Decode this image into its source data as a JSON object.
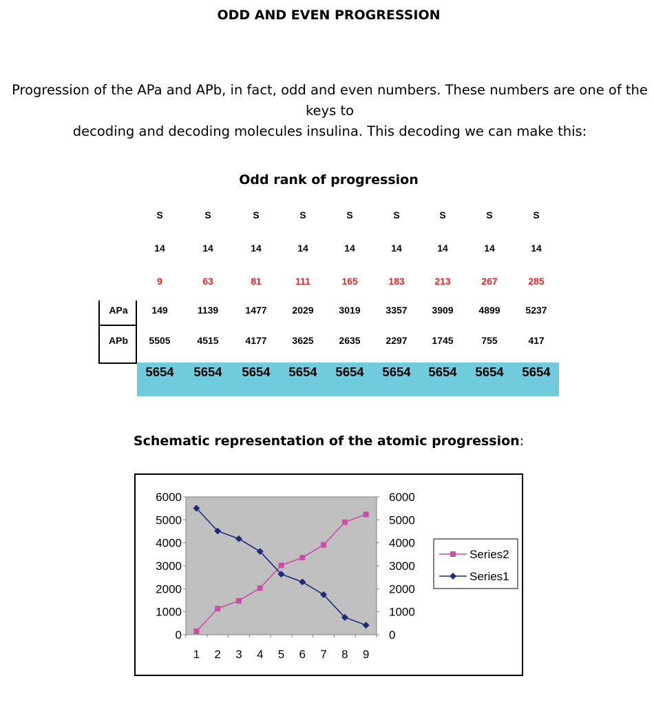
{
  "title": "ODD AND EVEN PROGRESSION",
  "intro_line1": "Progression of the APa and APb, in fact, odd and even numbers. These numbers are one of the keys to",
  "intro_line2": "decoding and decoding molecules insulina. This decoding we can make this:",
  "subtitle": "Odd rank of progression",
  "table": {
    "s_row": [
      "S",
      "S",
      "S",
      "S",
      "S",
      "S",
      "S",
      "S",
      "S"
    ],
    "fourteen_row": [
      "14",
      "14",
      "14",
      "14",
      "14",
      "14",
      "14",
      "14",
      "14"
    ],
    "red_row": [
      "9",
      "63",
      "81",
      "111",
      "165",
      "183",
      "213",
      "267",
      "285"
    ],
    "apa_label": "APa",
    "apa_row": [
      "149",
      "1139",
      "1477",
      "2029",
      "3019",
      "3357",
      "3909",
      "4899",
      "5237"
    ],
    "apb_label": "APb",
    "apb_row": [
      "5505",
      "4515",
      "4177",
      "3625",
      "2635",
      "2297",
      "1745",
      "755",
      "417"
    ],
    "sum_row": [
      "5654",
      "5654",
      "5654",
      "5654",
      "5654",
      "5654",
      "5654",
      "5654",
      "5654"
    ],
    "red_color": "#e0262b",
    "sum_bg_color": "#70cbdd"
  },
  "chart_title": "Schematic representation of the atomic progression",
  "chart_title_suffix": ":",
  "chart_data": {
    "type": "line",
    "title": "",
    "categories": [
      "1",
      "2",
      "3",
      "4",
      "5",
      "6",
      "7",
      "8",
      "9"
    ],
    "series": [
      {
        "name": "Series2",
        "color": "#c94fa8",
        "marker": "square",
        "values": [
          149,
          1139,
          1477,
          2029,
          3019,
          3357,
          3909,
          4899,
          5237
        ]
      },
      {
        "name": "Series1",
        "color": "#1f2a78",
        "marker": "diamond",
        "values": [
          5505,
          4515,
          4177,
          3625,
          2635,
          2297,
          1745,
          755,
          417
        ]
      }
    ],
    "ylim": [
      0,
      6000
    ],
    "yticks": [
      "0",
      "1000",
      "2000",
      "3000",
      "4000",
      "5000",
      "6000"
    ],
    "plot_bg": "#c0c0c0",
    "legend_position": "right",
    "xlabel": "",
    "ylabel": ""
  }
}
